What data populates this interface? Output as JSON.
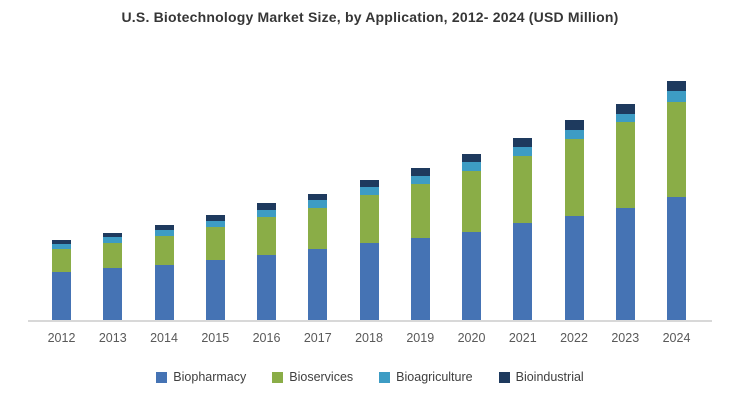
{
  "title": "U.S. Biotechnology Market Size, by Application, 2012- 2024 (USD Million)",
  "colors": {
    "biopharmacy": "#4573b4",
    "bioservices": "#8aad47",
    "bioagriculture": "#3d9cc4",
    "bioindustrial": "#1e3a5e",
    "axis_line": "#d8d8d8",
    "tick_text": "#595959",
    "title_text": "#363636",
    "legend_text": "#404040"
  },
  "chart_data": {
    "type": "bar",
    "stacked": true,
    "title": "U.S. Biotechnology Market Size, by Application, 2012- 2024 (USD Million)",
    "xlabel": "",
    "ylabel": "",
    "y_axis_visible": false,
    "gridlines": false,
    "legend_position": "bottom",
    "note": "No y-axis, gridlines or data labels are shown; segment values are relative heights estimated from pixels (baseline-to-top), stacking order bottom-to-top: Biopharmacy, Bioservices, Bioagriculture, Bioindustrial.",
    "categories": [
      "2012",
      "2013",
      "2014",
      "2015",
      "2016",
      "2017",
      "2018",
      "2019",
      "2020",
      "2021",
      "2022",
      "2023",
      "2024"
    ],
    "series": [
      {
        "name": "Biopharmacy",
        "color": "#4573b4",
        "values": [
          49,
          53,
          56,
          61,
          66,
          72,
          78,
          83,
          89,
          98,
          105,
          113,
          124
        ]
      },
      {
        "name": "Bioservices",
        "color": "#8aad47",
        "values": [
          23,
          25,
          29,
          33,
          38,
          41,
          48,
          54,
          61,
          67,
          77,
          86,
          95
        ]
      },
      {
        "name": "Bioagriculture",
        "color": "#3d9cc4",
        "values": [
          5,
          6,
          6,
          6,
          7,
          8,
          8,
          8,
          9,
          9,
          9,
          8,
          11
        ]
      },
      {
        "name": "Bioindustrial",
        "color": "#1e3a5e",
        "values": [
          4,
          4,
          5,
          6,
          7,
          6,
          7,
          8,
          8,
          9,
          10,
          10,
          10
        ]
      }
    ],
    "totals": [
      81,
      88,
      96,
      106,
      118,
      127,
      141,
      153,
      167,
      183,
      201,
      217,
      240
    ]
  },
  "legend": {
    "items": [
      {
        "label": "Biopharmacy",
        "color": "#4573b4"
      },
      {
        "label": "Bioservices",
        "color": "#8aad47"
      },
      {
        "label": "Bioagriculture",
        "color": "#3d9cc4"
      },
      {
        "label": "Bioindustrial",
        "color": "#1e3a5e"
      }
    ]
  }
}
